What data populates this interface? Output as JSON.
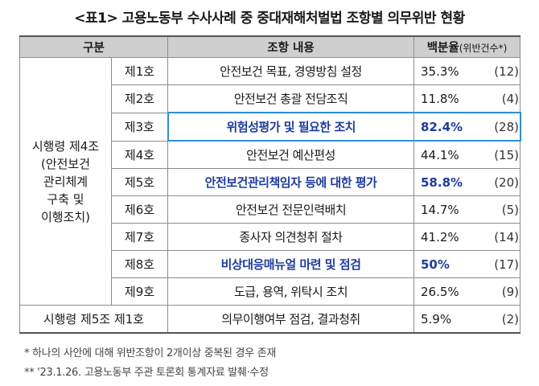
{
  "title": "<표1> 고용노동부 수사사례 중 중대재해처벌법 조항별 의무위반 현황",
  "header": {
    "col1": "구분",
    "col2": "조항 내용",
    "col3_main": "백분율",
    "col3_sub": "(위반건수*)"
  },
  "group1": [
    "시행령 제4조",
    "(안전보건",
    "관리체계",
    "구축 및",
    "이행조치)"
  ],
  "rows": [
    {
      "item": "제1호",
      "content": "안전보건 목표, 경영방침 설정",
      "pct": "35.3%",
      "count": "(12)"
    },
    {
      "item": "제2호",
      "content": "안전보건 총괄 전담조직",
      "pct": "11.8%",
      "count": "(4)"
    },
    {
      "item": "제3호",
      "content": "위험성평가 및 필요한 조치",
      "pct": "82.4%",
      "count": "(28)"
    },
    {
      "item": "제4호",
      "content": "안전보건 예산편성",
      "pct": "44.1%",
      "count": "(15)"
    },
    {
      "item": "제5호",
      "content": "안전보건관리책임자 등에 대한 평가",
      "pct": "58.8%",
      "count": "(20)"
    },
    {
      "item": "제6호",
      "content": "안전보건 전문인력배치",
      "pct": "14.7%",
      "count": "(5)"
    },
    {
      "item": "제7호",
      "content": "종사자 의견청취 절차",
      "pct": "41.2%",
      "count": "(14)"
    },
    {
      "item": "제8호",
      "content": "비상대응매뉴얼 마련 및 점검",
      "pct": "50%",
      "count": "(17)"
    },
    {
      "item": "제9호",
      "content": "도급, 용역, 위탁시 조치",
      "pct": "26.5%",
      "count": "(9)"
    }
  ],
  "last_row": {
    "group": "시행령 제5조 제1호",
    "content": "의무이행여부 점검, 결과청취",
    "pct": "5.9%",
    "count": "(2)"
  },
  "notes": [
    "* 하나의 사안에 대해 위반조항이 2개이상 중복된 경우 존재",
    "** '23.1.26. 고용노동부 주관 토론회 통계자료 발췌·수정"
  ],
  "colors": {
    "highlight_text": "#1f3c9c",
    "highlight_box": "#2f8fd6",
    "header_bg": "#cfcfcf"
  }
}
